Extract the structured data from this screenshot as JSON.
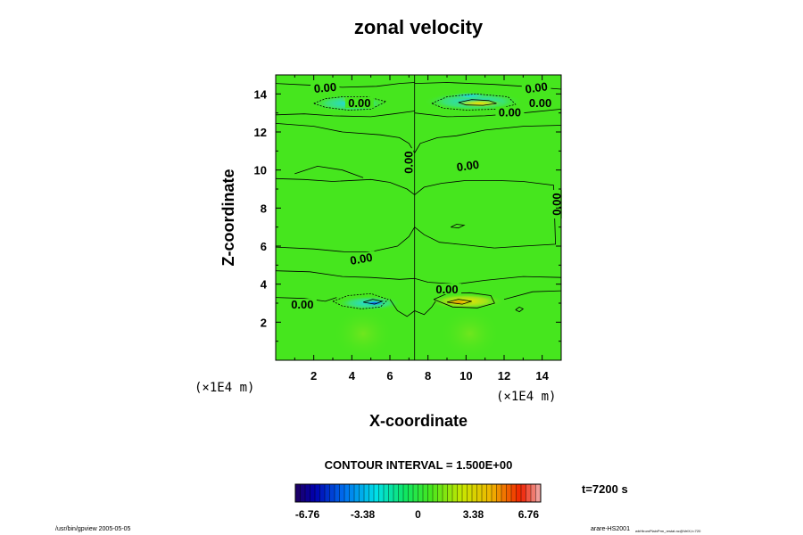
{
  "chart_data": {
    "type": "heatmap",
    "title": "zonal velocity",
    "xlabel": "X-coordinate",
    "ylabel": "Z-coordinate",
    "x_unit": "(×1E4 m)",
    "y_unit": "(×1E4 m)",
    "xlim": [
      0,
      15
    ],
    "ylim": [
      0,
      15
    ],
    "xticks": [
      "2",
      "4",
      "6",
      "8",
      "10",
      "12",
      "14"
    ],
    "yticks": [
      "2",
      "4",
      "6",
      "8",
      "10",
      "12",
      "14"
    ],
    "contour_interval_text": "CONTOUR INTERVAL = 1.500E+00",
    "contour_labels": [
      {
        "text": "0.00",
        "x": 2.6,
        "z": 14.3,
        "angle": -5
      },
      {
        "text": "0.00",
        "x": 4.4,
        "z": 13.5,
        "angle": 0
      },
      {
        "text": "0.00",
        "x": 13.7,
        "z": 14.3,
        "angle": -8
      },
      {
        "text": "0.00",
        "x": 13.9,
        "z": 13.5,
        "angle": 0
      },
      {
        "text": "0.00",
        "x": 12.3,
        "z": 13.0,
        "angle": 0
      },
      {
        "text": "0.00",
        "x": 7.0,
        "z": 10.4,
        "angle": -90
      },
      {
        "text": "0.00",
        "x": 10.1,
        "z": 10.2,
        "angle": -8
      },
      {
        "text": "0.00",
        "x": 14.8,
        "z": 8.2,
        "angle": -90
      },
      {
        "text": "0.00",
        "x": 4.5,
        "z": 5.3,
        "angle": -10
      },
      {
        "text": "0.00",
        "x": 9.0,
        "z": 3.7,
        "angle": 0
      },
      {
        "text": "0.00",
        "x": 1.4,
        "z": 2.9,
        "angle": 0
      }
    ],
    "colorbar": {
      "range": [
        -7.5,
        7.5
      ],
      "tick_values": [
        -6.76,
        -3.38,
        0,
        3.38,
        6.76
      ],
      "tick_labels": [
        "-6.76",
        "-3.38",
        "0",
        "3.38",
        "6.76"
      ],
      "colormap": "rainbow"
    },
    "features": [
      {
        "name": "upper-left jet",
        "x": 3.9,
        "z": 13.5,
        "sign": "mixed"
      },
      {
        "name": "upper-right jet",
        "x": 10.4,
        "z": 13.6,
        "sign": "mixed"
      },
      {
        "name": "lower-left jet",
        "x": 4.8,
        "z": 3.0,
        "sign": "negative"
      },
      {
        "name": "lower-right jet",
        "x": 10.0,
        "z": 3.1,
        "sign": "positive"
      }
    ],
    "grid": false
  },
  "time_label": "t=7200 s",
  "footer_left": "/usr/bin/gpview 2005-05-05",
  "footer_right_main": "arare-HS2001",
  "footer_right_sub": "wbHtromPlainPrm_restat.nc@VelX,t=720",
  "colors": {
    "background_field": "#46e61e",
    "negative_core": "#00e6e6",
    "positive_core": "#f0e600",
    "contour": "#000000"
  }
}
